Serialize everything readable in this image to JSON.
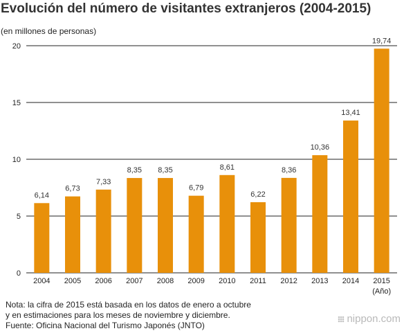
{
  "header": {
    "title": "Evolución del número de visitantes extranjeros (2004-2015)",
    "units": "(en millones de personas)"
  },
  "footer": {
    "note_line1": "Nota: la cifra de 2015 está basada en los datos de enero a octubre",
    "note_line2": "y en estimaciones para los meses de noviembre y diciembre.",
    "source": "Fuente: Oficina Nacional del Turismo Japonés (JNTO)",
    "brand": "nippon.com"
  },
  "chart_data": {
    "type": "bar",
    "title": "Evolución del número de visitantes extranjeros (2004-2015)",
    "ylabel": "(en millones de personas)",
    "xlabel": "(Año)",
    "categories": [
      "2004",
      "2005",
      "2006",
      "2007",
      "2008",
      "2009",
      "2010",
      "2011",
      "2012",
      "2013",
      "2014",
      "2015"
    ],
    "values": [
      6.14,
      6.73,
      7.33,
      8.35,
      8.35,
      6.79,
      8.61,
      6.22,
      8.36,
      10.36,
      13.41,
      19.74
    ],
    "value_labels": [
      "6,14",
      "6,73",
      "7,33",
      "8,35",
      "8,35",
      "6,79",
      "8,61",
      "6,22",
      "8,36",
      "10,36",
      "13,41",
      "19,74"
    ],
    "yticks": [
      0,
      5,
      10,
      15,
      20
    ],
    "ylim": [
      0,
      20
    ],
    "grid": true,
    "bar_color": "#e8900a",
    "grid_color": "#222222"
  }
}
